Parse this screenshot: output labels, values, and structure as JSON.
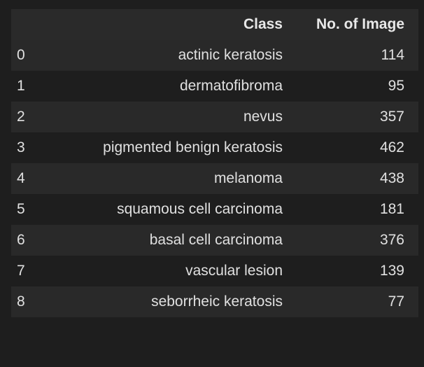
{
  "table": {
    "columns": {
      "index": "",
      "class": "Class",
      "count": "No. of Image"
    },
    "rows": [
      {
        "index": "0",
        "class": "actinic keratosis",
        "count": "114"
      },
      {
        "index": "1",
        "class": "dermatofibroma",
        "count": "95"
      },
      {
        "index": "2",
        "class": "nevus",
        "count": "357"
      },
      {
        "index": "3",
        "class": "pigmented benign keratosis",
        "count": "462"
      },
      {
        "index": "4",
        "class": "melanoma",
        "count": "438"
      },
      {
        "index": "5",
        "class": "squamous cell carcinoma",
        "count": "181"
      },
      {
        "index": "6",
        "class": "basal cell carcinoma",
        "count": "376"
      },
      {
        "index": "7",
        "class": "vascular lesion",
        "count": "139"
      },
      {
        "index": "8",
        "class": "seborrheic keratosis",
        "count": "77"
      }
    ]
  },
  "colors": {
    "background": "#1e1e1e",
    "header_row": "#2a2a2a",
    "striped_row": "#292929",
    "text": "#e0e0e0"
  }
}
